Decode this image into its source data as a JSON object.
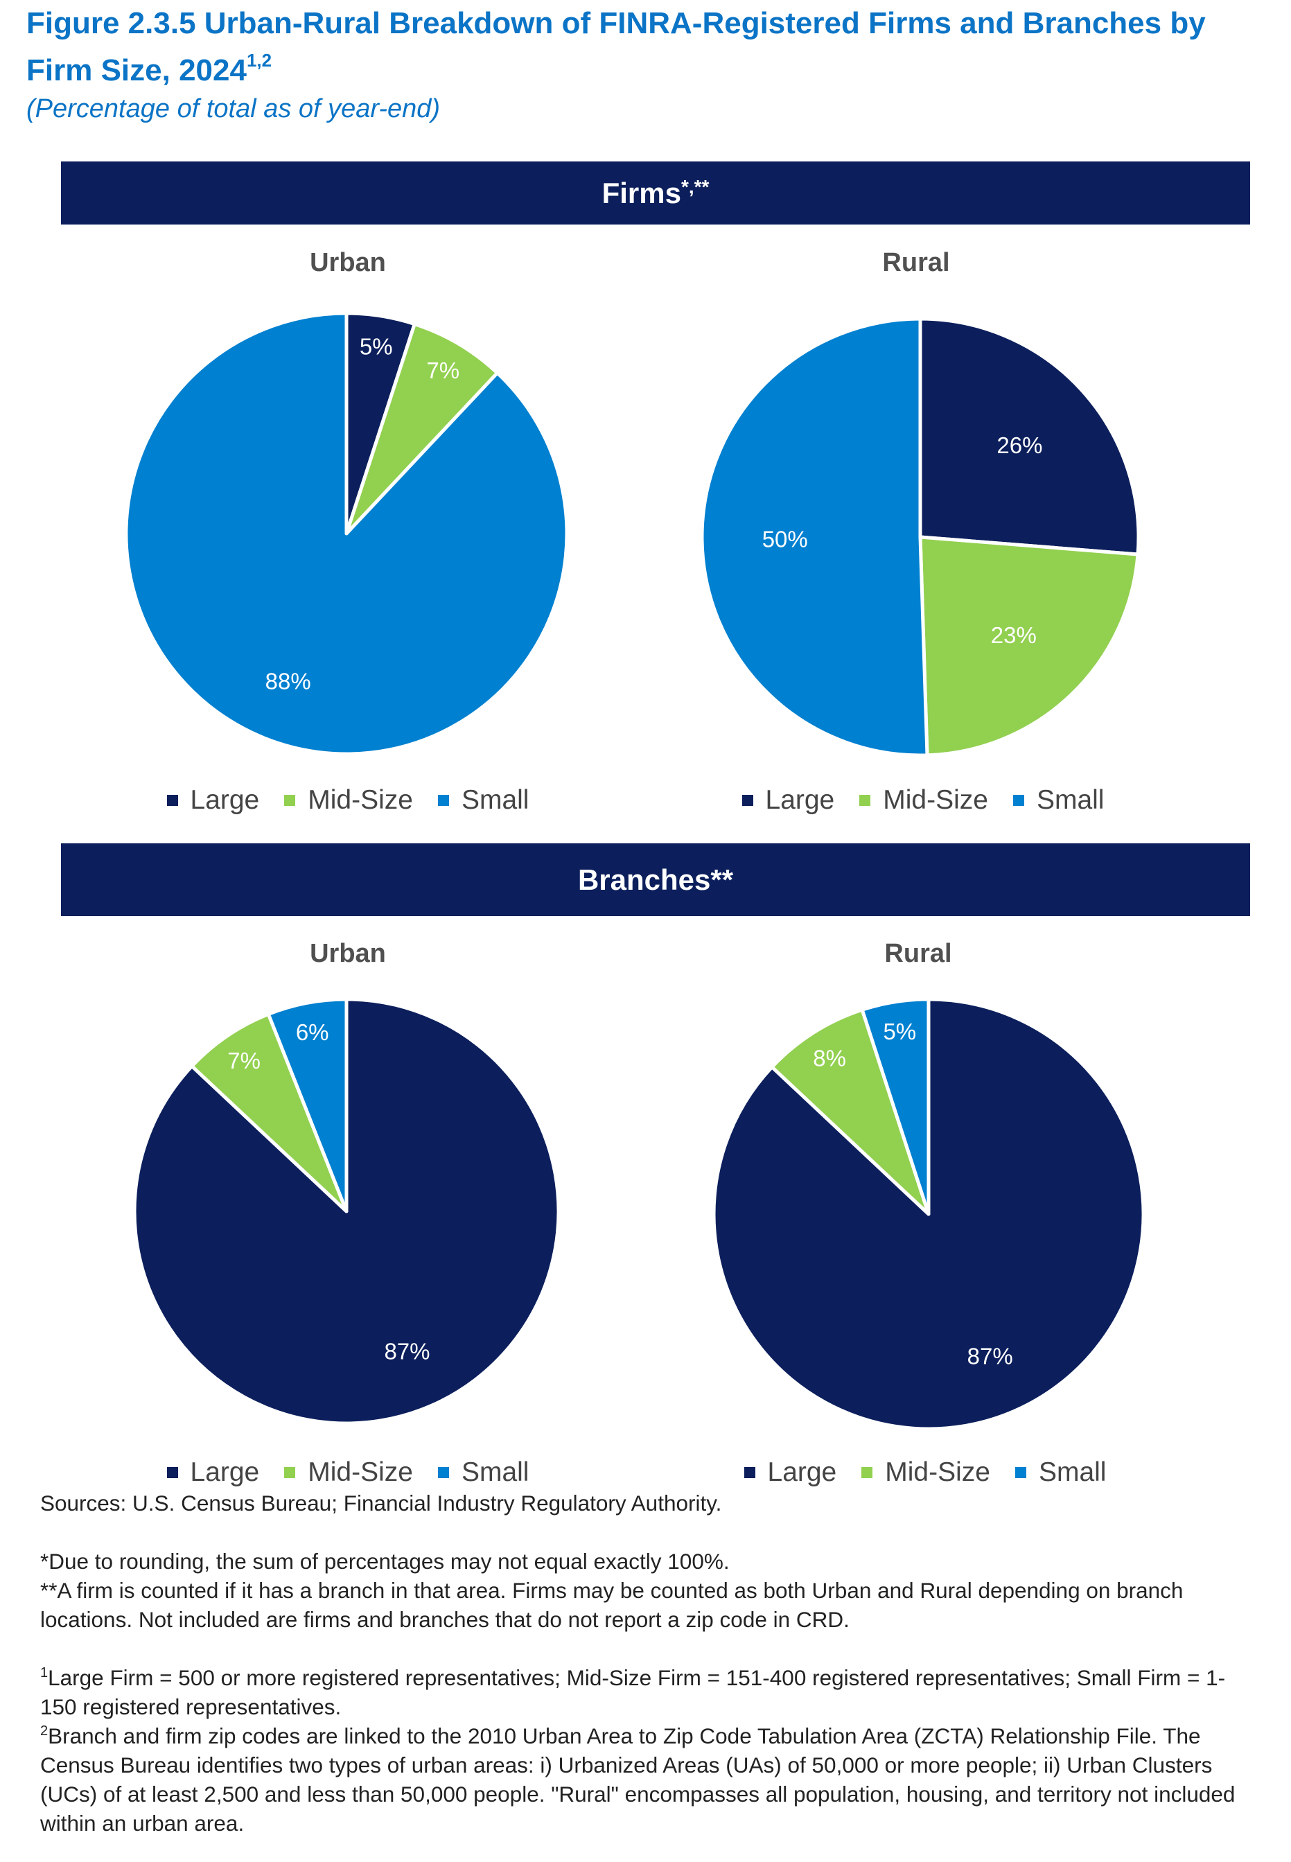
{
  "figure": {
    "title": "Figure 2.3.5 Urban-Rural Breakdown of FINRA-Registered Firms and Branches by Firm Size, 2024",
    "title_footnotes": "1,2",
    "subtitle": "(Percentage of total as of year-end)"
  },
  "sections": [
    {
      "label": "Firms",
      "marks": "*,**"
    },
    {
      "label": "Branches",
      "marks": "**"
    }
  ],
  "legend": {
    "items": [
      {
        "label": "Large",
        "color": "#0c1f5c"
      },
      {
        "label": "Mid-Size",
        "color": "#92d050"
      },
      {
        "label": "Small",
        "color": "#0080d0"
      }
    ]
  },
  "chart_data": [
    {
      "type": "pie",
      "section": "Firms",
      "title": "Urban",
      "labels": [
        "Large",
        "Mid-Size",
        "Small"
      ],
      "values": [
        5,
        7,
        88
      ],
      "value_labels": [
        "5%",
        "7%",
        "88%"
      ]
    },
    {
      "type": "pie",
      "section": "Firms",
      "title": "Rural",
      "labels": [
        "Large",
        "Mid-Size",
        "Small"
      ],
      "values": [
        26,
        23,
        50
      ],
      "value_labels": [
        "26%",
        "23%",
        "50%"
      ]
    },
    {
      "type": "pie",
      "section": "Branches",
      "title": "Urban",
      "labels": [
        "Large",
        "Mid-Size",
        "Small"
      ],
      "values": [
        87,
        7,
        6
      ],
      "value_labels": [
        "87%",
        "7%",
        "6%"
      ]
    },
    {
      "type": "pie",
      "section": "Branches",
      "title": "Rural",
      "labels": [
        "Large",
        "Mid-Size",
        "Small"
      ],
      "values": [
        87,
        8,
        5
      ],
      "value_labels": [
        "87%",
        "8%",
        "5%"
      ]
    }
  ],
  "notes": {
    "sources": "Sources: U.S. Census Bureau; Financial Industry Regulatory Authority.",
    "note1": "*Due to rounding, the sum of percentages may not equal exactly 100%.",
    "note2": "**A firm is counted if it has a branch in that area. Firms may be counted as both Urban and Rural depending on branch locations. Not included are firms and branches that do not report a zip code in CRD.",
    "footnote1_mark": "1",
    "footnote1": "Large Firm = 500 or more registered representatives; Mid-Size Firm = 151-400 registered representatives; Small Firm = 1-150 registered representatives.",
    "footnote2_mark": "2",
    "footnote2": "Branch and firm zip codes are linked to the 2010 Urban Area to Zip Code Tabulation Area (ZCTA) Relationship File. The Census Bureau identifies two types of urban areas: i) Urbanized Areas (UAs) of 50,000 or more people; ii) Urban Clusters (UCs) of at least 2,500 and less than 50,000 people. \"Rural\" encompasses all population, housing, and territory not included within an urban area."
  }
}
